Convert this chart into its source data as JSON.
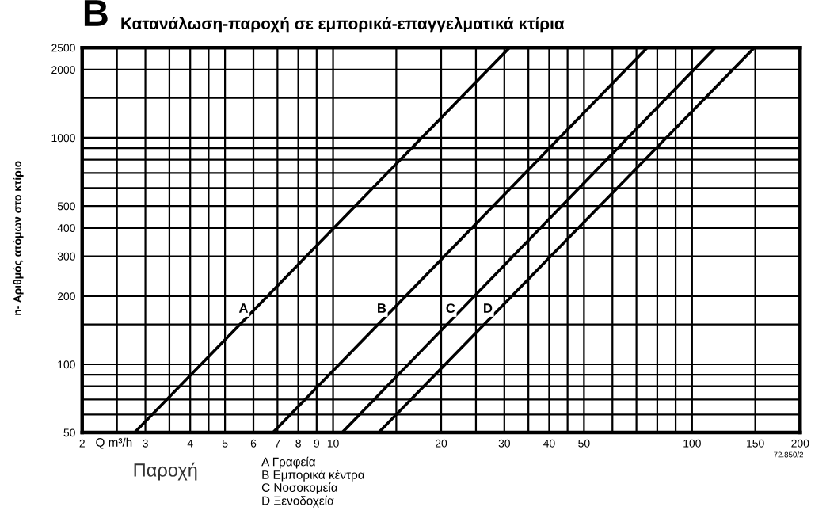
{
  "chart_data": {
    "type": "line",
    "title": "B",
    "subtitle": "Κατανάλωση-παροχή σε εμπορικά-επαγγελματικά κτίρια",
    "xlabel": "Q m³/h",
    "ylabel": "n- Αριθμός ατόμων στο κτίριο",
    "log": "xy",
    "grid": true,
    "legend": false,
    "marker": "none",
    "line_style": "solid",
    "xlim": [
      2,
      200
    ],
    "ylim": [
      50,
      2500
    ],
    "xticks": [
      2,
      {
        "value": 2.5,
        "label": null
      },
      3,
      {
        "value": 3.5,
        "label": null
      },
      4,
      {
        "value": 4.5,
        "label": null
      },
      5,
      6,
      7,
      8,
      9,
      10,
      {
        "value": 15,
        "label": null
      },
      20,
      {
        "value": 25,
        "label": null
      },
      30,
      {
        "value": 35,
        "label": null
      },
      40,
      {
        "value": 45,
        "label": null
      },
      50,
      {
        "value": 60,
        "label": null
      },
      {
        "value": 70,
        "label": null
      },
      {
        "value": 80,
        "label": null
      },
      {
        "value": 90,
        "label": null
      },
      100,
      150,
      200
    ],
    "yticks": [
      50,
      {
        "value": 60,
        "label": null
      },
      {
        "value": 70,
        "label": null
      },
      {
        "value": 80,
        "label": null
      },
      {
        "value": 90,
        "label": null
      },
      100,
      {
        "value": 150,
        "label": null
      },
      200,
      300,
      400,
      500,
      {
        "value": 600,
        "label": null
      },
      {
        "value": 700,
        "label": null
      },
      {
        "value": 800,
        "label": null
      },
      {
        "value": 900,
        "label": null
      },
      1000,
      {
        "value": 1500,
        "label": null
      },
      2000,
      2500
    ],
    "series": [
      {
        "name": "A",
        "color": "#000000",
        "x": [
          2.8,
          31
        ],
        "values": [
          50,
          2500
        ]
      },
      {
        "name": "B",
        "color": "#000000",
        "x": [
          6.8,
          75
        ],
        "values": [
          50,
          2500
        ]
      },
      {
        "name": "C",
        "color": "#000000",
        "x": [
          10.6,
          116
        ],
        "values": [
          50,
          2500
        ]
      },
      {
        "name": "D",
        "color": "#000000",
        "x": [
          13.4,
          149
        ],
        "values": [
          50,
          2500
        ]
      }
    ],
    "annotations": [
      "Παροχή",
      "A Γραφεία",
      "B Εμπορικά κέντρα",
      "C Νοσοκομεία",
      "D Ξενοδοχεία",
      "72.850/2"
    ]
  }
}
